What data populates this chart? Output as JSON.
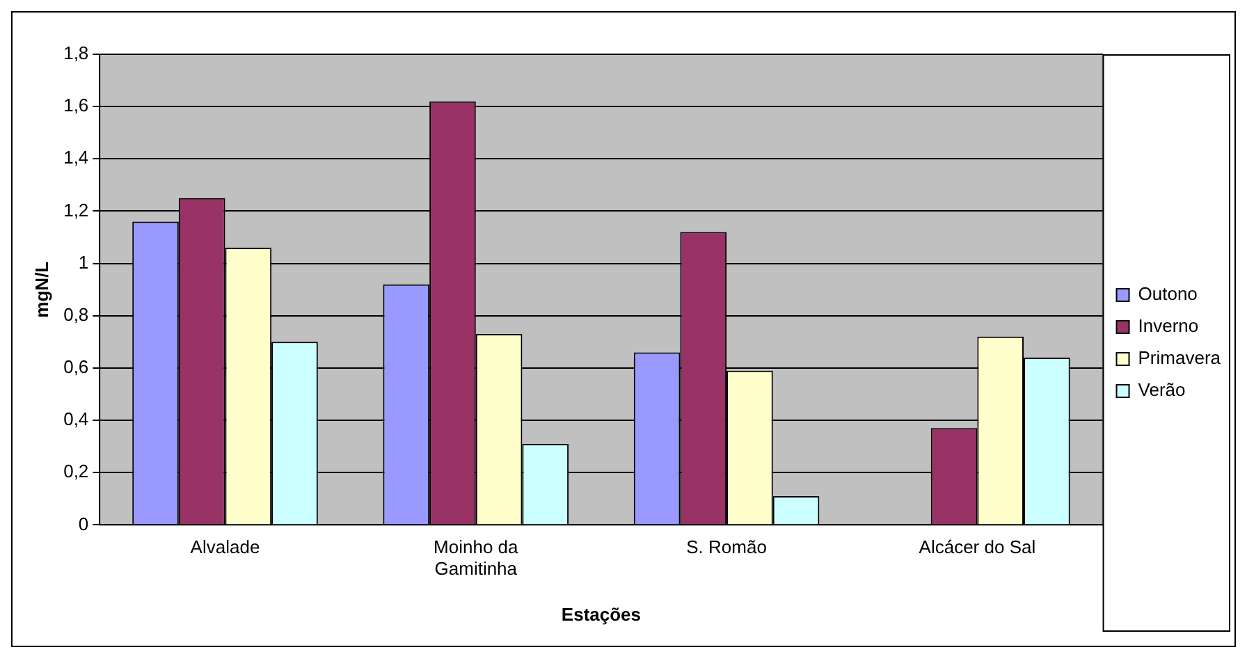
{
  "chart_data": {
    "type": "bar",
    "xlabel": "Estações",
    "ylabel": "mgN/L",
    "categories": [
      "Alvalade",
      "Moinho da Gamitinha",
      "S. Romão",
      "Alcácer do Sal"
    ],
    "series": [
      {
        "name": "Outono",
        "color": "#9999ff",
        "values": [
          1.16,
          0.92,
          0.66,
          null
        ]
      },
      {
        "name": "Inverno",
        "color": "#993366",
        "values": [
          1.25,
          1.62,
          1.12,
          0.37
        ]
      },
      {
        "name": "Primavera",
        "color": "#ffffcc",
        "values": [
          1.06,
          0.73,
          0.59,
          0.72
        ]
      },
      {
        "name": "Verão",
        "color": "#ccffff",
        "values": [
          0.7,
          0.31,
          0.11,
          0.64
        ]
      }
    ],
    "ylim": [
      0,
      1.8
    ],
    "yticks": [
      0,
      {
        "value": 0.2,
        "label": "0,2"
      },
      {
        "value": 0.4,
        "label": "0,4"
      },
      {
        "value": 0.6,
        "label": "0,6"
      },
      {
        "value": 0.8,
        "label": "0,8"
      },
      1,
      {
        "value": 1.2,
        "label": "1,2"
      },
      {
        "value": 1.4,
        "label": "1,4"
      },
      {
        "value": 1.6,
        "label": "1,6"
      },
      {
        "value": 1.8,
        "label": "1,8"
      }
    ],
    "grid": "y",
    "legend": "right"
  }
}
